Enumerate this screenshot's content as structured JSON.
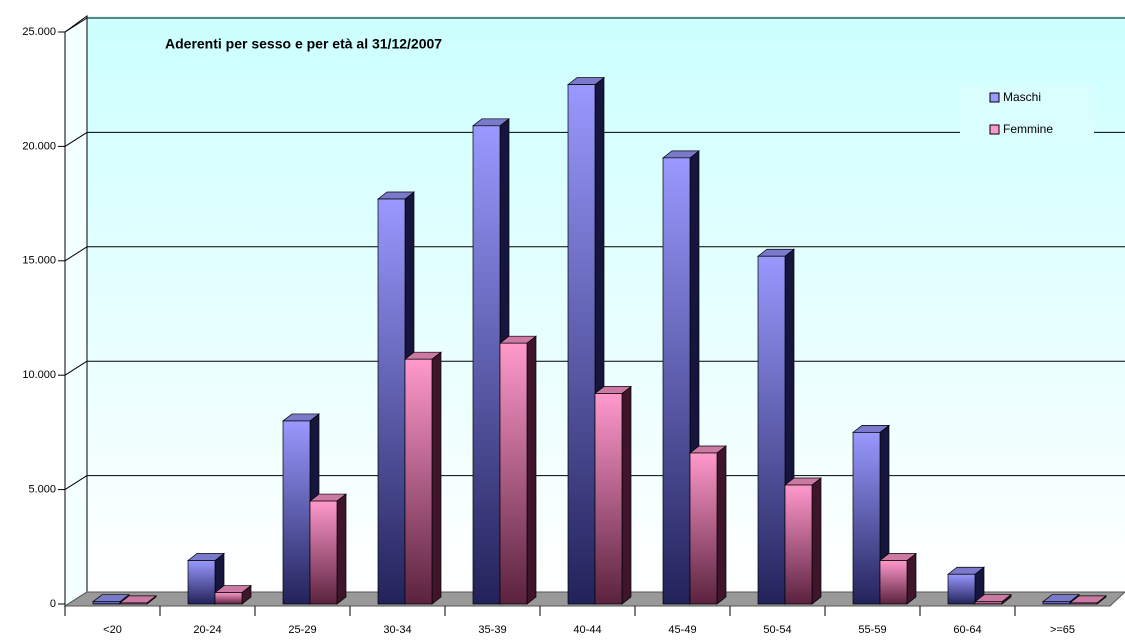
{
  "chart_data": {
    "type": "bar3d",
    "title": "Aderenti per sesso e per età al 31/12/2007",
    "categories": [
      "<20",
      "20-24",
      "25-29",
      "30-34",
      "35-39",
      "40-44",
      "45-49",
      "50-54",
      "55-59",
      "60-64",
      ">=65"
    ],
    "series": [
      {
        "name": "Maschi",
        "color": "#9999ff",
        "values": [
          100,
          1900,
          8000,
          17700,
          20900,
          22700,
          19500,
          15200,
          7500,
          1300,
          100
        ]
      },
      {
        "name": "Femmine",
        "color": "#ff99cc",
        "values": [
          50,
          500,
          4500,
          10700,
          11400,
          9200,
          6600,
          5200,
          1900,
          100,
          50
        ]
      }
    ],
    "ylim": [
      0,
      25000
    ],
    "yticks": [
      0,
      {
        "value": 5000,
        "label": "5.000"
      },
      {
        "value": 10000,
        "label": "10.000"
      },
      {
        "value": 15000,
        "label": "15.000"
      },
      {
        "value": 20000,
        "label": "20.000"
      },
      {
        "value": 25000,
        "label": "25.000"
      }
    ],
    "grid": true,
    "legend": "top-right"
  }
}
